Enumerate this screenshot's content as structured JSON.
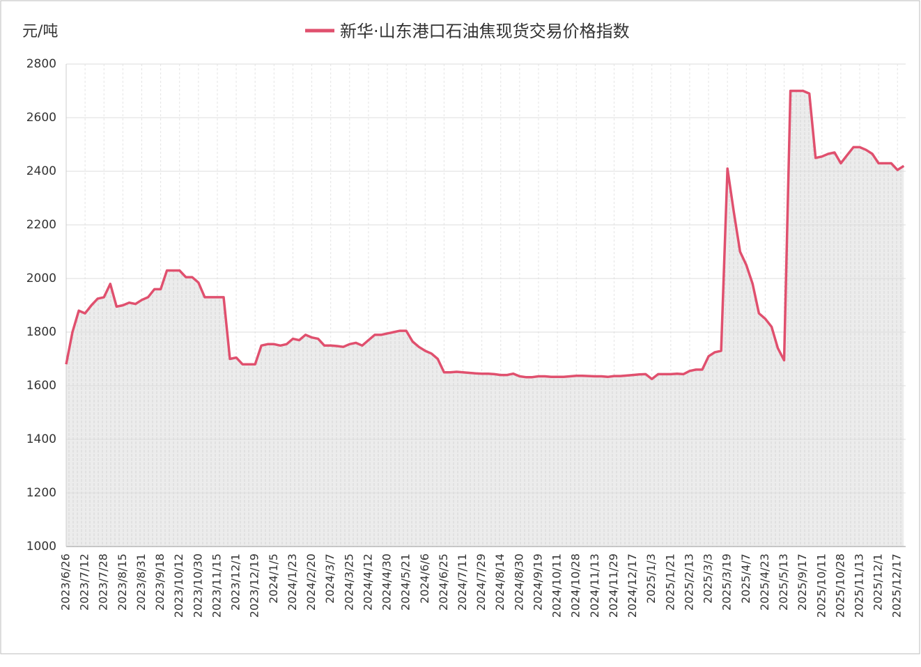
{
  "chart_data": {
    "type": "line",
    "title": "新华·山东港口石油焦现货交易价格指数",
    "y_label": "元/吨",
    "categories": [
      "2023/6/26",
      null,
      null,
      "2023/7/12",
      null,
      null,
      "2023/7/28",
      null,
      null,
      "2023/8/15",
      null,
      null,
      "2023/8/31",
      null,
      null,
      "2023/9/18",
      null,
      null,
      "2023/10/12",
      null,
      null,
      "2023/10/30",
      null,
      null,
      "2023/11/15",
      null,
      null,
      "2023/12/1",
      null,
      null,
      "2023/12/19",
      null,
      null,
      "2024/1/5",
      null,
      null,
      "2024/1/23",
      null,
      null,
      "2024/2/20",
      null,
      null,
      "2024/3/7",
      null,
      null,
      "2024/3/25",
      null,
      null,
      "2024/4/12",
      null,
      null,
      "2024/4/30",
      null,
      null,
      "2024/5/21",
      null,
      null,
      "2024/6/6",
      null,
      null,
      "2024/6/25",
      null,
      null,
      "2024/7/11",
      null,
      null,
      "2024/7/29",
      null,
      null,
      "2024/8/14",
      null,
      null,
      "2024/8/30",
      null,
      null,
      "2024/9/19",
      null,
      null,
      "2024/10/11",
      null,
      null,
      "2024/10/28",
      null,
      null,
      "2024/11/13",
      null,
      null,
      "2024/11/29",
      null,
      null,
      "2024/12/17",
      null,
      null,
      "2025/1/3",
      null,
      null,
      "2025/1/21",
      null,
      null,
      "2025/2/13",
      null,
      null,
      "2025/3/3",
      null,
      null,
      "2025/3/19",
      null,
      null,
      "2025/4/7",
      null,
      null,
      "2025/4/23",
      null,
      null,
      "2025/5/13",
      null,
      null,
      "2025/9/17",
      null,
      null,
      "2025/10/11",
      null,
      null,
      "2025/10/28",
      null,
      null,
      "2025/11/13",
      null,
      null,
      "2025/12/1",
      null,
      null,
      "2025/12/17",
      null
    ],
    "series": [
      {
        "name": "新华·山东港口石油焦现货交易价格指数",
        "color": "#e0506e",
        "values": [
          1680,
          1800,
          1880,
          1870,
          1900,
          1925,
          1930,
          1980,
          1895,
          1900,
          1910,
          1905,
          1920,
          1930,
          1960,
          1960,
          2030,
          2030,
          2030,
          2005,
          2005,
          1985,
          1930,
          1930,
          1930,
          1930,
          1700,
          1705,
          1680,
          1680,
          1680,
          1750,
          1755,
          1755,
          1750,
          1755,
          1775,
          1770,
          1790,
          1780,
          1775,
          1750,
          1750,
          1748,
          1745,
          1755,
          1760,
          1750,
          1770,
          1790,
          1790,
          1795,
          1800,
          1805,
          1805,
          1765,
          1745,
          1730,
          1720,
          1700,
          1650,
          1650,
          1652,
          1650,
          1648,
          1646,
          1645,
          1645,
          1643,
          1640,
          1640,
          1645,
          1635,
          1632,
          1632,
          1635,
          1635,
          1633,
          1633,
          1633,
          1635,
          1637,
          1637,
          1636,
          1635,
          1635,
          1633,
          1636,
          1636,
          1638,
          1640,
          1642,
          1643,
          1625,
          1643,
          1643,
          1643,
          1645,
          1643,
          1655,
          1660,
          1660,
          1710,
          1725,
          1730,
          2410,
          2250,
          2100,
          2050,
          1980,
          1870,
          1850,
          1820,
          1740,
          1695,
          2700,
          2700,
          2700,
          2690,
          2450,
          2455,
          2465,
          2470,
          2430,
          2460,
          2490,
          2490,
          2480,
          2465,
          2430,
          2430,
          2430,
          2405,
          2420
        ]
      }
    ],
    "ylim": [
      1000,
      2800
    ],
    "yticks": [
      1000,
      1200,
      1400,
      1600,
      1800,
      2000,
      2200,
      2400,
      2600,
      2800
    ],
    "grid": true
  }
}
